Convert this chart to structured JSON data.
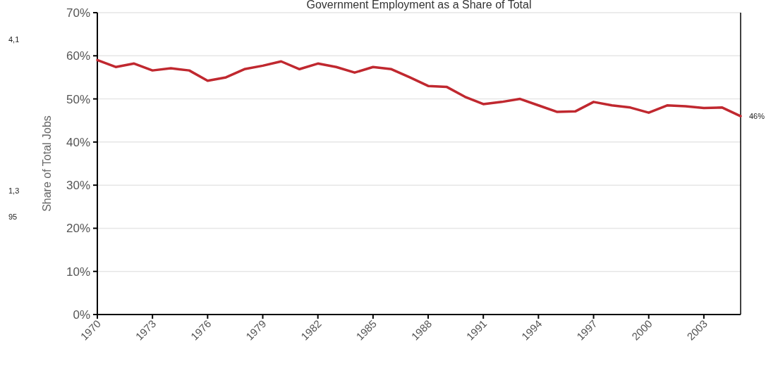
{
  "chart_data": {
    "type": "line",
    "title": "Government Employment as a Share of Total",
    "ylabel": "Share of Total Jobs",
    "x": [
      1970,
      1971,
      1972,
      1973,
      1974,
      1975,
      1976,
      1977,
      1978,
      1979,
      1980,
      1981,
      1982,
      1983,
      1984,
      1985,
      1986,
      1987,
      1988,
      1989,
      1990,
      1991,
      1992,
      1993,
      1994,
      1995,
      1996,
      1997,
      1998,
      1999,
      2000,
      2001,
      2002,
      2003,
      2004,
      2005
    ],
    "series": [
      {
        "color": "#c0282f",
        "values": [
          59.0,
          57.4,
          58.2,
          56.6,
          57.1,
          56.6,
          54.2,
          55.0,
          56.9,
          57.7,
          58.7,
          56.9,
          58.2,
          57.4,
          56.1,
          57.4,
          56.9,
          55.0,
          53.0,
          52.8,
          50.5,
          48.8,
          49.3,
          50.0,
          48.5,
          47.0,
          47.1,
          49.3,
          48.5,
          48.0,
          46.8,
          48.5,
          48.3,
          47.9,
          48.0,
          46
        ],
        "value_labels": [
          null,
          null,
          null,
          null,
          null,
          null,
          null,
          null,
          null,
          null,
          null,
          null,
          null,
          null,
          null,
          null,
          null,
          null,
          null,
          null,
          null,
          null,
          null,
          null,
          null,
          null,
          null,
          null,
          null,
          null,
          null,
          null,
          null,
          null,
          null,
          "46%"
        ]
      }
    ],
    "xlim": [
      1970,
      2005
    ],
    "xticks": [
      1970,
      1973,
      1976,
      1979,
      1982,
      1985,
      1988,
      1991,
      1994,
      1997,
      2000,
      2003
    ],
    "ylim": [
      0,
      70
    ],
    "yticks": [
      {
        "value": 0,
        "label": "0%"
      },
      {
        "value": 10,
        "label": "10%"
      },
      {
        "value": 20,
        "label": "20%"
      },
      {
        "value": 30,
        "label": "30%"
      },
      {
        "value": 40,
        "label": "40%"
      },
      {
        "value": 50,
        "label": "50%"
      },
      {
        "value": 60,
        "label": "60%"
      },
      {
        "value": 70,
        "label": "70%"
      }
    ],
    "grid": "y",
    "marker": "none",
    "line_style": "solid",
    "annotations": [
      "4,1",
      "1,3",
      "95"
    ]
  }
}
